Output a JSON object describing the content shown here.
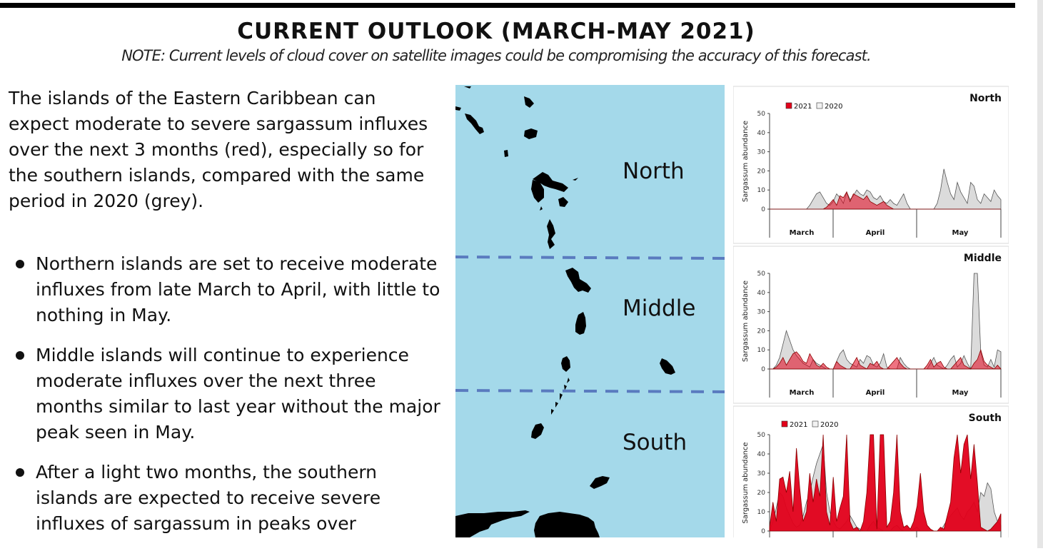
{
  "title": "CURRENT OUTLOOK (MARCH-MAY 2021)",
  "note": "NOTE: Current levels of cloud cover on satellite images could be compromising the accuracy of this forecast.",
  "intro": "The islands of the Eastern Caribbean can expect moderate to severe sargassum influxes over the next 3 months (red), especially so for the southern islands, compared with the same period in 2020 (grey).",
  "bullets": [
    "Northern islands are set to receive moderate influxes from late March to April, with little to nothing in May.",
    "Middle islands will continue to experience moderate influxes over the next three months similar to last year without the major peak seen in May.",
    "After a light two months, the southern islands are expected to receive severe influxes of sargassum in peaks over"
  ],
  "map": {
    "regions": [
      "North",
      "Middle",
      "South"
    ],
    "colors": {
      "sea": "#a4d9ea",
      "land": "#000000",
      "divider": "#5a7bbf"
    }
  },
  "colors": {
    "s2021": "#e2001a",
    "s2020": "#bdbdbd"
  },
  "chart_data": [
    {
      "type": "area",
      "title": "North",
      "ylabel": "Sargassum abundance",
      "ylim": [
        0,
        50
      ],
      "yticks": [
        0,
        10,
        20,
        30,
        40,
        50
      ],
      "month_labels": [
        "March",
        "April",
        "May"
      ],
      "legend": [
        "2021",
        "2020"
      ],
      "legend_position": "top-left",
      "series": [
        {
          "name": "2021",
          "values": [
            0,
            0,
            0,
            0,
            0,
            0,
            0,
            0,
            0,
            0,
            0,
            0,
            0,
            0,
            0,
            0,
            0,
            1,
            3,
            5,
            2,
            7,
            6,
            9,
            4,
            8,
            7,
            6,
            5,
            7,
            4,
            3,
            2,
            3,
            4,
            2,
            1,
            0,
            0,
            0,
            0,
            0,
            0,
            0,
            0,
            0,
            0,
            0,
            0,
            0,
            0,
            0,
            0,
            0,
            0,
            0,
            0,
            0,
            0,
            0,
            0,
            0,
            0,
            0,
            0,
            0,
            0,
            0,
            0,
            0
          ]
        },
        {
          "name": "2020",
          "values": [
            0,
            0,
            0,
            0,
            0,
            0,
            0,
            0,
            0,
            0,
            0,
            0,
            2,
            5,
            8,
            9,
            6,
            3,
            2,
            4,
            8,
            6,
            3,
            9,
            5,
            7,
            10,
            8,
            7,
            10,
            9,
            6,
            5,
            7,
            4,
            3,
            5,
            3,
            2,
            5,
            8,
            3,
            0,
            0,
            0,
            0,
            0,
            0,
            0,
            0,
            3,
            10,
            21,
            14,
            8,
            5,
            14,
            9,
            6,
            3,
            14,
            12,
            5,
            3,
            8,
            6,
            4,
            10,
            7,
            5
          ]
        }
      ]
    },
    {
      "type": "area",
      "title": "Middle",
      "ylabel": "Sargassum abundance",
      "ylim": [
        0,
        50
      ],
      "yticks": [
        0,
        10,
        20,
        30,
        40,
        50
      ],
      "month_labels": [
        "March",
        "April",
        "May"
      ],
      "legend": [],
      "series": [
        {
          "name": "2021",
          "values": [
            0,
            0,
            1,
            3,
            6,
            2,
            5,
            8,
            9,
            7,
            4,
            3,
            8,
            5,
            2,
            1,
            3,
            1,
            0,
            0,
            4,
            2,
            1,
            0,
            0,
            3,
            6,
            2,
            1,
            0,
            3,
            2,
            4,
            1,
            0,
            0,
            2,
            4,
            6,
            3,
            1,
            0,
            0,
            0,
            0,
            0,
            0,
            2,
            5,
            1,
            3,
            4,
            1,
            0,
            0,
            2,
            4,
            6,
            2,
            1,
            0,
            3,
            5,
            10,
            4,
            2,
            1,
            0,
            2,
            0
          ]
        },
        {
          "name": "2020",
          "values": [
            0,
            0,
            2,
            6,
            13,
            20,
            15,
            10,
            7,
            5,
            3,
            2,
            1,
            5,
            3,
            2,
            1,
            0,
            0,
            0,
            4,
            8,
            10,
            5,
            3,
            2,
            1,
            5,
            3,
            7,
            6,
            2,
            1,
            3,
            8,
            1,
            0,
            0,
            0,
            6,
            3,
            1,
            0,
            0,
            0,
            0,
            0,
            0,
            3,
            6,
            2,
            1,
            0,
            2,
            5,
            7,
            1,
            3,
            7,
            3,
            0,
            50,
            50,
            9,
            2,
            1,
            5,
            1,
            10,
            9
          ]
        }
      ]
    },
    {
      "type": "area",
      "title": "South",
      "ylabel": "Sargassum abundance",
      "ylim": [
        0,
        50
      ],
      "yticks": [
        0,
        10,
        20,
        30,
        40,
        50
      ],
      "month_labels": [
        "March",
        "April",
        "May"
      ],
      "legend": [
        "2021",
        "2020"
      ],
      "legend_position": "top-left",
      "series": [
        {
          "name": "2021",
          "values": [
            2,
            15,
            5,
            27,
            28,
            20,
            31,
            10,
            43,
            22,
            5,
            10,
            30,
            15,
            27,
            18,
            50,
            10,
            3,
            28,
            5,
            12,
            18,
            50,
            5,
            1,
            2,
            0,
            5,
            20,
            50,
            50,
            1,
            50,
            50,
            2,
            5,
            20,
            50,
            10,
            2,
            3,
            1,
            5,
            13,
            30,
            10,
            3,
            1,
            0,
            0,
            2,
            1,
            8,
            15,
            38,
            50,
            30,
            45,
            50,
            27,
            45,
            25,
            2,
            1,
            0,
            1,
            3,
            5,
            9
          ]
        },
        {
          "name": "2020",
          "values": [
            0,
            5,
            12,
            20,
            18,
            12,
            8,
            4,
            2,
            3,
            8,
            15,
            20,
            28,
            35,
            40,
            45,
            20,
            10,
            5,
            2,
            1,
            3,
            5,
            8,
            5,
            2,
            1,
            0,
            0,
            3,
            5,
            2,
            1,
            0,
            0,
            0,
            2,
            3,
            1,
            0,
            0,
            0,
            1,
            2,
            0,
            0,
            0,
            0,
            0,
            0,
            0,
            3,
            6,
            8,
            10,
            12,
            8,
            6,
            10,
            12,
            15,
            10,
            20,
            18,
            25,
            22,
            10,
            5,
            3
          ]
        }
      ]
    }
  ]
}
